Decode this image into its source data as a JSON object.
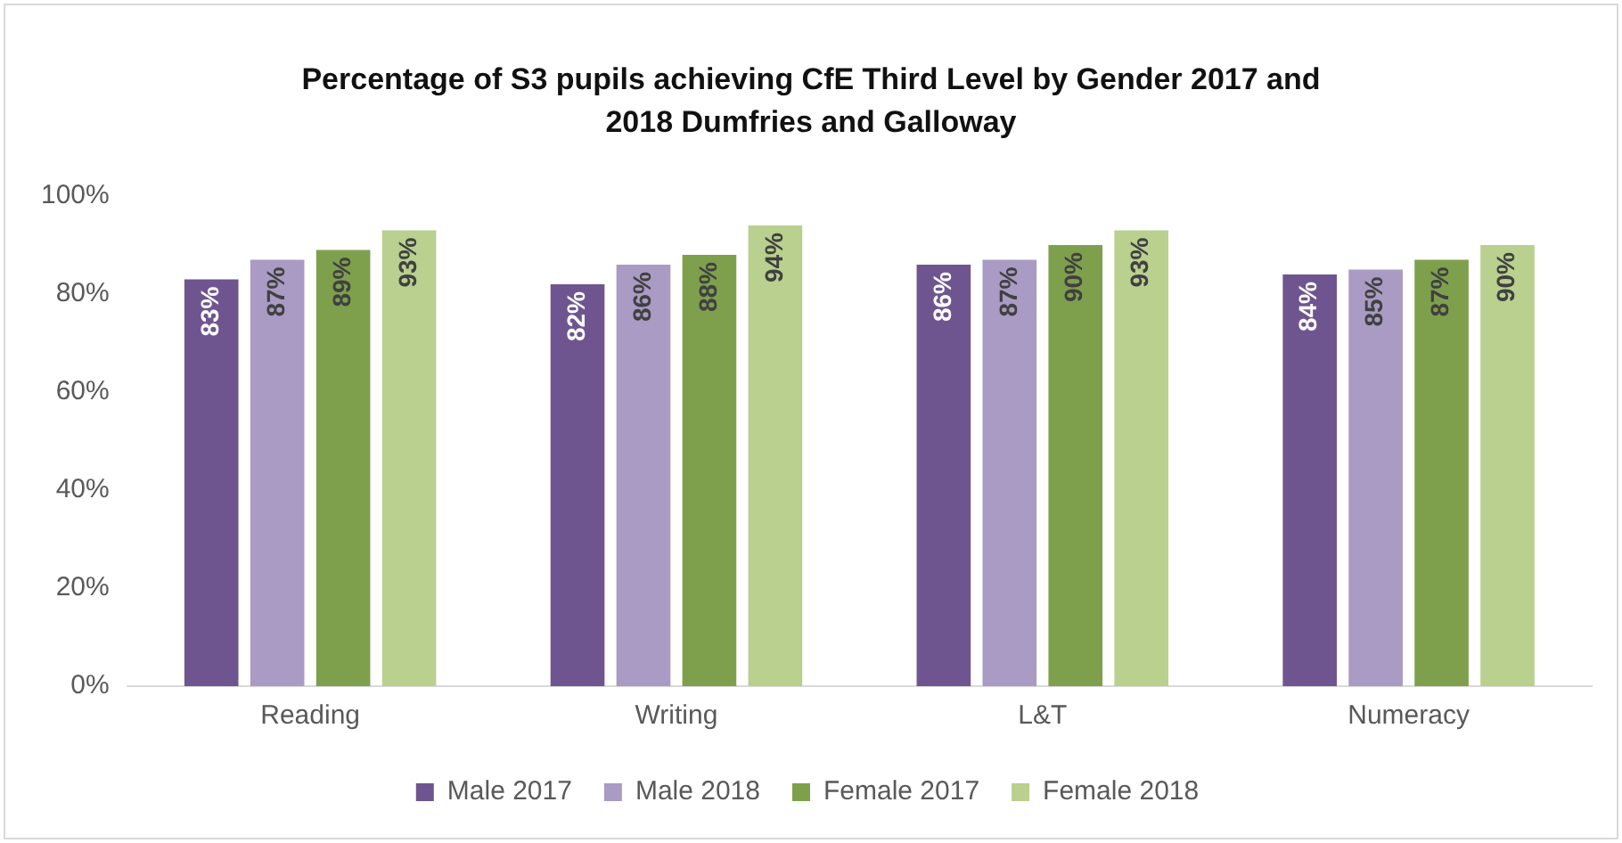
{
  "chart_data": {
    "type": "bar",
    "title": "Percentage of S3 pupils achieving CfE Third Level by Gender 2017 and 2018 Dumfries and Galloway",
    "categories": [
      "Reading",
      "Writing",
      "L&T",
      "Numeracy"
    ],
    "series": [
      {
        "name": "Male 2017",
        "color": "#6f5590",
        "values": [
          83,
          82,
          86,
          84
        ],
        "value_labels": [
          "83%",
          "82%",
          "86%",
          "84%"
        ]
      },
      {
        "name": "Male 2018",
        "color": "#a99bc3",
        "values": [
          87,
          86,
          87,
          85
        ],
        "value_labels": [
          "87%",
          "86%",
          "87%",
          "85%"
        ]
      },
      {
        "name": "Female 2017",
        "color": "#7ea04d",
        "values": [
          89,
          88,
          90,
          87
        ],
        "value_labels": [
          "89%",
          "88%",
          "90%",
          "87%"
        ]
      },
      {
        "name": "Female 2018",
        "color": "#b9d08e",
        "values": [
          93,
          94,
          93,
          90
        ],
        "value_labels": [
          "93%",
          "94%",
          "93%",
          "90%"
        ]
      }
    ],
    "ylim": [
      0,
      100
    ],
    "yticks": [
      {
        "value": 0,
        "label": "0%"
      },
      {
        "value": 20,
        "label": "20%"
      },
      {
        "value": 40,
        "label": "40%"
      },
      {
        "value": 60,
        "label": "60%"
      },
      {
        "value": 80,
        "label": "80%"
      },
      {
        "value": 100,
        "label": "100%"
      }
    ],
    "grid": false,
    "legend": "bottom"
  }
}
